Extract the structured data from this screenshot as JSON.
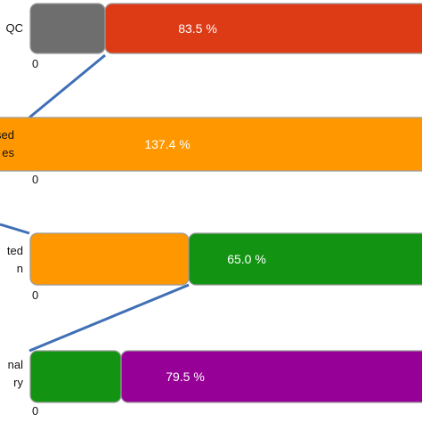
{
  "chart_data": {
    "type": "bar",
    "orientation": "horizontal",
    "rows": [
      {
        "label": "QC",
        "zero_label": "0",
        "segments": [
          {
            "value": null,
            "label": "",
            "color": "#6e6e6e"
          },
          {
            "value": 83.5,
            "label": "83.5 %",
            "color": "#dd3a16"
          }
        ]
      },
      {
        "label": "sed\nes",
        "zero_label": "0",
        "segments": [
          {
            "value": 137.4,
            "label": "137.4 %",
            "color": "#ff9800"
          }
        ]
      },
      {
        "label": "ted\nn",
        "zero_label": "0",
        "segments": [
          {
            "value": null,
            "label": "",
            "color": "#ff9800"
          },
          {
            "value": 65.0,
            "label": "65.0 %",
            "color": "#129412"
          }
        ]
      },
      {
        "label": "nal\nry",
        "zero_label": "0",
        "segments": [
          {
            "value": null,
            "label": "",
            "color": "#129412"
          },
          {
            "value": 79.5,
            "label": "79.5 %",
            "color": "#960096"
          }
        ]
      }
    ],
    "connector_color": "#3f6fb5"
  }
}
